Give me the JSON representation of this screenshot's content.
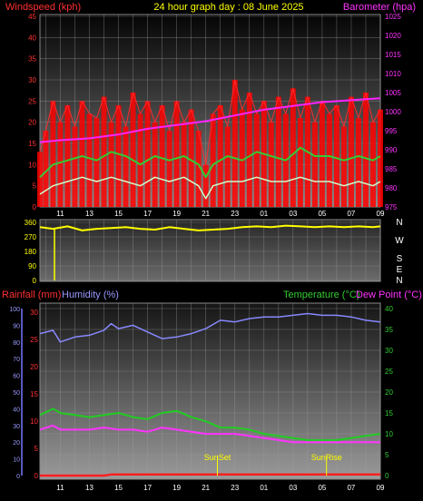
{
  "title": "24 hour graph day : 08 June 2025",
  "colors": {
    "windspeed": "#ff2a2a",
    "windgust": "#ff0000",
    "windavg": "#33cc33",
    "windlow": "#ccffcc",
    "barometer": "#ff22ff",
    "direction": "#ffff00",
    "rainfall": "#ff2020",
    "humidity": "#8888ff",
    "temperature": "#22cc22",
    "dewpoint": "#ff33ff",
    "sun_marker": "#ffff00",
    "tick_text": "#ffffff"
  },
  "x_tick_labels": [
    "11",
    "13",
    "15",
    "17",
    "19",
    "21",
    "23",
    "01",
    "03",
    "05",
    "07",
    "09"
  ],
  "compass_labels": [
    "N",
    "W",
    "S",
    "E",
    "N"
  ],
  "chart_data": [
    {
      "type": "line",
      "name": "wind-barometer",
      "left_label": "Windspeed (kph)",
      "right_label": "Barometer (hpa)",
      "y_left_ticks": [
        0,
        5,
        10,
        15,
        20,
        25,
        30,
        35,
        40,
        45
      ],
      "y_left_range": [
        0,
        45
      ],
      "y_right_ticks": [
        975,
        980,
        985,
        990,
        995,
        1000,
        1005,
        1010,
        1015,
        1020,
        1025
      ],
      "y_right_range": [
        975,
        1025
      ],
      "x_range_hours": [
        9.6,
        33.0
      ],
      "grid": true,
      "series": [
        {
          "key": "gust",
          "x": [
            9.6,
            10.0,
            10.5,
            11.0,
            11.5,
            12.0,
            12.5,
            13.0,
            13.5,
            14.0,
            14.5,
            15.0,
            15.5,
            16.0,
            16.5,
            17.0,
            17.5,
            18.0,
            18.5,
            19.0,
            19.5,
            20.0,
            20.5,
            21.0,
            21.5,
            22.0,
            22.5,
            23.0,
            23.5,
            24.0,
            24.5,
            25.0,
            25.5,
            26.0,
            26.5,
            27.0,
            27.5,
            28.0,
            28.5,
            29.0,
            29.5,
            30.0,
            30.5,
            31.0,
            31.5,
            32.0,
            32.5,
            33.0
          ],
          "y": [
            13,
            18,
            25,
            20,
            24,
            19,
            25,
            22,
            21,
            26,
            20,
            24,
            19,
            27,
            22,
            25,
            20,
            24,
            18,
            25,
            20,
            23,
            18,
            10,
            22,
            24,
            19,
            30,
            23,
            27,
            22,
            25,
            20,
            26,
            22,
            28,
            21,
            26,
            20,
            25,
            22,
            24,
            19,
            26,
            21,
            27,
            20,
            23
          ]
        },
        {
          "key": "average",
          "x": [
            9.6,
            10.5,
            11.5,
            12.5,
            13.5,
            14.5,
            15.5,
            16.5,
            17.5,
            18.5,
            19.5,
            20.5,
            21.0,
            21.5,
            22.5,
            23.5,
            24.5,
            25.5,
            26.5,
            27.5,
            28.5,
            29.5,
            30.5,
            31.5,
            32.5,
            33.0
          ],
          "y": [
            7,
            10,
            11,
            12,
            11,
            13,
            12,
            10,
            12,
            11,
            12,
            10,
            7,
            10,
            12,
            11,
            13,
            12,
            11,
            14,
            12,
            12,
            11,
            12,
            11,
            12
          ]
        },
        {
          "key": "low",
          "x": [
            9.6,
            10.5,
            11.5,
            12.5,
            13.5,
            14.5,
            15.5,
            16.5,
            17.5,
            18.5,
            19.5,
            20.5,
            21.0,
            21.5,
            22.5,
            23.5,
            24.5,
            25.5,
            26.5,
            27.5,
            28.5,
            29.5,
            30.5,
            31.5,
            32.5,
            33.0
          ],
          "y": [
            3,
            5,
            6,
            7,
            6,
            7,
            6,
            5,
            7,
            6,
            7,
            5,
            2,
            5,
            6,
            6,
            7,
            6,
            6,
            7,
            6,
            6,
            5,
            6,
            5,
            6
          ]
        },
        {
          "key": "barometer",
          "x": [
            9.6,
            11,
            13,
            15,
            17,
            19,
            21,
            23,
            25,
            27,
            29,
            31,
            33
          ],
          "y": [
            992.0,
            992.5,
            993.0,
            994.0,
            995.5,
            996.5,
            997.5,
            999.0,
            1000.5,
            1001.5,
            1002.5,
            1003.0,
            1003.5
          ]
        }
      ]
    },
    {
      "type": "line",
      "name": "wind-direction",
      "y_ticks": [
        0,
        90,
        180,
        270,
        360
      ],
      "y_range": [
        0,
        360
      ],
      "x_range_hours": [
        9.6,
        33.0
      ],
      "grid": true,
      "series": [
        {
          "key": "direction",
          "x": [
            9.6,
            10.5,
            11.5,
            12.5,
            13.5,
            14.5,
            15.5,
            16.5,
            17.5,
            18.5,
            19.5,
            20.5,
            21.5,
            22.5,
            23.5,
            24.5,
            25.5,
            26.5,
            27.5,
            28.5,
            29.5,
            30.5,
            31.5,
            32.5,
            33.0
          ],
          "y": [
            330,
            320,
            335,
            310,
            320,
            325,
            330,
            320,
            315,
            330,
            320,
            310,
            315,
            320,
            330,
            335,
            330,
            340,
            335,
            330,
            335,
            330,
            335,
            330,
            335
          ]
        }
      ]
    },
    {
      "type": "line",
      "name": "rain-humidity-temperature",
      "left_label_1": "Rainfall (mm)",
      "left_label_2": "Humidity (%)",
      "right_label_1": "Temperature (°C)",
      "right_label_2": "Dew Point (°C)",
      "y_rain_ticks": [
        0,
        5,
        10,
        15,
        20,
        25,
        30
      ],
      "y_rain_range": [
        0,
        30
      ],
      "y_humidity_ticks": [
        0,
        10,
        20,
        30,
        40,
        50,
        60,
        70,
        80,
        90,
        100
      ],
      "y_humidity_range": [
        0,
        100
      ],
      "y_temp_ticks": [
        0,
        5,
        10,
        15,
        20,
        25,
        30,
        35,
        40
      ],
      "y_temp_range": [
        0,
        40
      ],
      "x_range_hours": [
        9.6,
        33.0
      ],
      "grid": true,
      "markers": [
        {
          "label": "SunSet",
          "hour": 21.8
        },
        {
          "label": "SunRise",
          "hour": 29.3
        }
      ],
      "series": [
        {
          "key": "humidity",
          "x": [
            9.6,
            10.5,
            11.0,
            12.0,
            13.0,
            14.0,
            14.5,
            15.0,
            16.0,
            17.0,
            17.5,
            18.0,
            19.0,
            20.0,
            21.0,
            22.0,
            23.0,
            24.0,
            25.0,
            26.0,
            27.0,
            28.0,
            29.0,
            30.0,
            31.0,
            32.0,
            33.0
          ],
          "y": [
            85,
            87,
            80,
            83,
            84,
            87,
            91,
            88,
            90,
            86,
            84,
            82,
            83,
            85,
            88,
            93,
            92,
            94,
            95,
            95,
            96,
            97,
            96,
            96,
            95,
            93,
            92
          ]
        },
        {
          "key": "temperature",
          "x": [
            9.6,
            10.5,
            11.0,
            12.0,
            13.0,
            14.0,
            15.0,
            16.0,
            17.0,
            18.0,
            19.0,
            20.0,
            21.0,
            22.0,
            23.0,
            24.0,
            25.0,
            26.0,
            27.0,
            28.0,
            29.0,
            30.0,
            31.0,
            32.0,
            33.0
          ],
          "y": [
            14.5,
            16,
            15,
            14.5,
            14,
            14.5,
            15,
            14,
            13.5,
            15,
            15.5,
            14,
            13,
            11.5,
            11.5,
            11,
            10,
            9.5,
            9,
            8.5,
            8.5,
            8.5,
            9,
            9.5,
            10
          ]
        },
        {
          "key": "dewpoint",
          "x": [
            9.6,
            10.5,
            11.0,
            12.0,
            13.0,
            14.0,
            15.0,
            16.0,
            17.0,
            18.0,
            19.0,
            20.0,
            21.0,
            22.0,
            23.0,
            24.0,
            25.0,
            26.0,
            27.0,
            28.0,
            29.0,
            30.0,
            31.0,
            32.0,
            33.0
          ],
          "y": [
            11,
            12,
            11,
            11,
            11,
            11.5,
            11,
            11,
            10.5,
            11.5,
            11,
            10.5,
            10,
            10,
            10,
            9.5,
            9,
            8.5,
            8,
            8,
            8,
            8,
            8,
            8,
            8
          ]
        },
        {
          "key": "rainfall",
          "x": [
            9.6,
            14.0,
            14.5,
            33.0
          ],
          "y": [
            0.0,
            0.0,
            0.2,
            0.2
          ]
        }
      ]
    }
  ]
}
